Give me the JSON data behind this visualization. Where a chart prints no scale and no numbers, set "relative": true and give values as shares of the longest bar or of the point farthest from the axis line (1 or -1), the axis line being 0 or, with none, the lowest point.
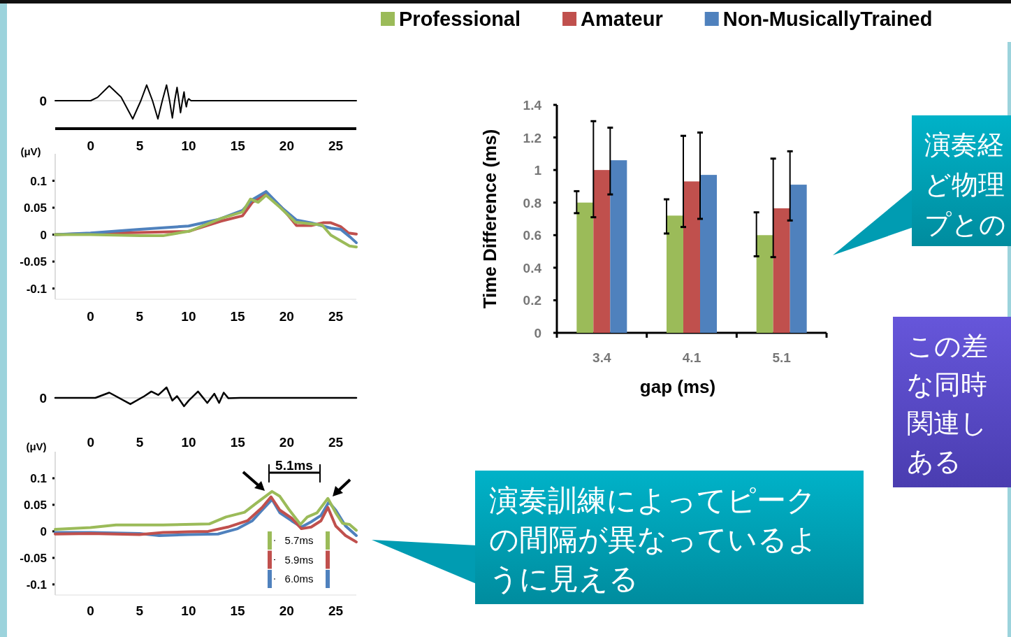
{
  "chart_data": [
    {
      "type": "line",
      "relative": true,
      "color": "#000000",
      "annotations": [
        "0"
      ],
      "xlim": [
        -3.62,
        27.1
      ],
      "xticks": [
        0,
        5,
        10,
        15,
        20,
        25
      ],
      "x": [
        -3.62,
        0,
        0.71,
        1.9,
        3.1,
        4.29,
        5.12,
        5.71,
        6.31,
        6.86,
        7.31,
        7.74,
        8.05,
        8.33,
        8.57,
        8.81,
        9.0,
        9.17,
        9.36,
        9.52,
        9.64,
        9.76,
        9.88,
        10.0,
        10.24,
        27.1
      ],
      "values": [
        0,
        0,
        0.19,
        0.82,
        0.2,
        -1,
        0,
        0.86,
        0,
        -1,
        0,
        0.86,
        0,
        -0.95,
        0,
        0.73,
        0,
        -0.66,
        0,
        0.48,
        0,
        -0.34,
        0,
        0.1,
        0,
        0
      ]
    },
    {
      "type": "line",
      "ylabel": "(μV)",
      "xlim": [
        -3.6,
        27.1
      ],
      "xticks": [
        0,
        5,
        10,
        15,
        20,
        25
      ],
      "ylim": [
        -0.12,
        0.15
      ],
      "yticks": [
        -0.1,
        -0.05,
        0,
        0.05,
        0.1
      ],
      "x": [
        -3.6,
        0,
        5,
        7.4,
        10.2,
        13.3,
        15.5,
        16.3,
        17.1,
        17.9,
        19.3,
        20.9,
        22.4,
        23.6,
        24.5,
        26.4,
        27.1
      ],
      "series": [
        {
          "color": "#c0504d",
          "x": [
            -3.6,
            0,
            5,
            10,
            13.3,
            15.5,
            16.5,
            17.9,
            19.5,
            21,
            22.5,
            23.7,
            24.5,
            25.5,
            26.3,
            27.1
          ],
          "values": [
            0,
            0.002,
            0.004,
            0.006,
            0.025,
            0.035,
            0.06,
            0.075,
            0.05,
            0.017,
            0.017,
            0.022,
            0.022,
            0.015,
            0.003,
            0.001
          ]
        },
        {
          "color": "#4f81bd",
          "x": [
            -3.6,
            0,
            5,
            10,
            13,
            15.5,
            16.5,
            17.9,
            19.5,
            21,
            22.5,
            23.5,
            24.5,
            25.5,
            26.5,
            27.1
          ],
          "values": [
            0,
            0.003,
            0.01,
            0.016,
            0.028,
            0.045,
            0.065,
            0.08,
            0.05,
            0.027,
            0.022,
            0.017,
            0.012,
            0.01,
            -0.005,
            -0.015
          ]
        },
        {
          "color": "#9bbb59",
          "values": [
            0,
            0,
            -0.002,
            -0.002,
            0.007,
            0.03,
            0.042,
            0.066,
            0.06,
            0.073,
            0.051,
            0.023,
            0.02,
            0.018,
            -0.001,
            -0.021,
            -0.023
          ]
        }
      ]
    },
    {
      "type": "line",
      "relative": true,
      "color": "#000000",
      "annotations": [
        "0"
      ],
      "xlim": [
        -3.62,
        27.1
      ],
      "xticks": [
        0,
        5,
        10,
        15,
        20,
        25
      ],
      "x": [
        -3.62,
        0.48,
        1.9,
        4.05,
        5.48,
        6.19,
        6.9,
        7.74,
        8.33,
        8.81,
        9.52,
        10.0,
        10.95,
        11.9,
        12.62,
        13.1,
        13.57,
        14.05,
        15.24,
        27.1
      ],
      "values": [
        0,
        0,
        0.5,
        -0.59,
        0.17,
        0.61,
        0.28,
        1,
        -0.26,
        0.17,
        -0.8,
        -0.26,
        0.61,
        -0.48,
        0.39,
        -0.48,
        0.5,
        -0.04,
        0,
        0
      ]
    },
    {
      "type": "line",
      "ylabel": "(μV)",
      "xlim": [
        -3.6,
        27.1
      ],
      "xticks": [
        0,
        5,
        10,
        15,
        20,
        25
      ],
      "ylim": [
        -0.12,
        0.15
      ],
      "yticks": [
        -0.1,
        -0.05,
        0,
        0.05,
        0.1
      ],
      "annotations": [
        "5.1ms",
        "5.7ms",
        "5.9ms",
        "6.0ms"
      ],
      "series": [
        {
          "color": "#4f81bd",
          "x": [
            -3.6,
            0,
            5,
            7,
            10,
            13,
            15,
            16.5,
            17.5,
            18.5,
            19.3,
            20.5,
            21.5,
            22.5,
            23.5,
            24.3,
            25,
            26,
            27.1
          ],
          "values": [
            -0.002,
            -0.002,
            -0.004,
            -0.008,
            -0.006,
            -0.005,
            0.005,
            0.02,
            0.04,
            0.06,
            0.035,
            0.02,
            0.008,
            0.018,
            0.03,
            0.055,
            0.04,
            0.01,
            -0.008
          ]
        },
        {
          "color": "#c0504d",
          "x": [
            -3.6,
            0,
            5,
            7.4,
            10,
            12,
            14,
            16,
            17.5,
            18.4,
            19.3,
            20.5,
            21.5,
            22.5,
            23.5,
            24.2,
            25,
            26,
            27.1
          ],
          "values": [
            -0.005,
            -0.004,
            -0.006,
            -0.002,
            -0.001,
            0,
            0.008,
            0.02,
            0.045,
            0.065,
            0.04,
            0.025,
            0.005,
            0.008,
            0.02,
            0.045,
            0.01,
            -0.008,
            -0.02
          ]
        },
        {
          "color": "#9bbb59",
          "x": [
            -3.6,
            0,
            2.6,
            7.4,
            12.1,
            13.8,
            15.7,
            16.9,
            18.5,
            19.3,
            20.2,
            21.4,
            22.1,
            23.1,
            24.2,
            25,
            25.7,
            26.4,
            27.1
          ],
          "values": [
            0.004,
            0.007,
            0.012,
            0.012,
            0.014,
            0.027,
            0.036,
            0.053,
            0.075,
            0.066,
            0.042,
            0.013,
            0.027,
            0.035,
            0.062,
            0.035,
            0.015,
            0.013,
            0.002
          ]
        }
      ]
    },
    {
      "type": "bar",
      "xlabel": "gap (ms)",
      "ylabel": "Time Difference (ms)",
      "legend": "top",
      "categories": [
        "3.4",
        "4.1",
        "5.1"
      ],
      "ylim": [
        0,
        1.4
      ],
      "yticks": [
        0,
        0.2,
        0.4,
        0.6,
        0.8,
        1,
        1.2,
        1.4
      ],
      "series": [
        {
          "name": "Professional",
          "color": "#9bbb59",
          "values": [
            0.8,
            0.72,
            0.6
          ],
          "errors": [
            [
              0.735,
              0.87
            ],
            [
              0.61,
              0.82
            ],
            [
              0.47,
              0.74
            ]
          ]
        },
        {
          "name": "Amateur",
          "color": "#c0504d",
          "values": [
            1.0,
            0.93,
            0.765
          ],
          "errors": [
            [
              0.71,
              1.3
            ],
            [
              0.65,
              1.21
            ],
            [
              0.465,
              1.07
            ]
          ]
        },
        {
          "name": "Non-MusicallyTrained",
          "color": "#4f81bd",
          "values": [
            1.06,
            0.97,
            0.91
          ],
          "errors": [
            [
              0.85,
              1.26
            ],
            [
              0.7,
              1.23
            ],
            [
              0.69,
              1.115
            ]
          ]
        }
      ]
    },
    {
      "type": "other",
      "annotations": [
        "演奏経ど物理プとの",
        "この差な同時関連しある",
        "演奏訓練によってピークの間隔が異なっているように見える"
      ]
    }
  ]
}
